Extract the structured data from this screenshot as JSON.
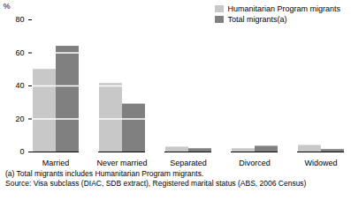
{
  "chart_data": {
    "type": "bar",
    "y_label": "%",
    "categories": [
      "Married",
      "Never married",
      "Separated",
      "Divorced",
      "Widowed"
    ],
    "series": [
      {
        "name": "Humanitarian Program migrants",
        "color": "#c8c8c8",
        "values": [
          50,
          41.5,
          3,
          2,
          4
        ]
      },
      {
        "name": "Total migrants(a)",
        "color": "#808080",
        "values": [
          64,
          29,
          2,
          3.5,
          1.5
        ]
      }
    ],
    "ylim": [
      0,
      80
    ],
    "yticks": [
      0,
      20,
      40,
      60,
      80
    ],
    "grid": true,
    "legend": "top-right",
    "annotations": [
      "(a) Total migrants includes Humanitarian Program migrants.",
      "Source: Visa subclass (DIAC, SDB extract), Registered marital status (ABS, 2006 Census)"
    ]
  }
}
